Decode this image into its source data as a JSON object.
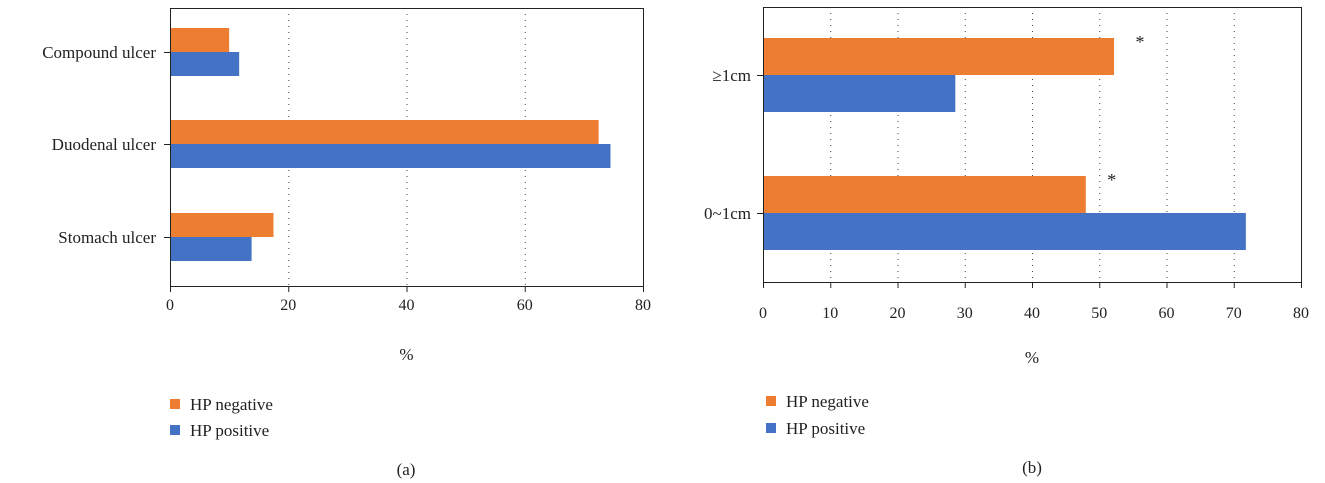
{
  "chart_data": [
    {
      "id": "a",
      "type": "bar",
      "orientation": "horizontal",
      "panel_label": "(a)",
      "categories": [
        "Stomach ulcer",
        "Duodenal ulcer",
        "Compound ulcer"
      ],
      "series": [
        {
          "name": "HP negative",
          "color": "#ED7D31",
          "values": [
            17.5,
            72.5,
            10
          ]
        },
        {
          "name": "HP positive",
          "color": "#4472C4",
          "values": [
            13.8,
            74.5,
            11.7
          ]
        }
      ],
      "xlabel": "%",
      "xlim": [
        0,
        80
      ],
      "xticks": [
        0,
        20,
        40,
        60,
        80
      ],
      "grid": "vertical dotted",
      "legend": "bottom",
      "annotations": []
    },
    {
      "id": "b",
      "type": "bar",
      "orientation": "horizontal",
      "panel_label": "(b)",
      "categories": [
        "0~1cm",
        "≥1cm"
      ],
      "series": [
        {
          "name": "HP negative",
          "color": "#ED7D31",
          "values": [
            48,
            52.2
          ]
        },
        {
          "name": "HP positive",
          "color": "#4472C4",
          "values": [
            71.8,
            28.6
          ]
        }
      ],
      "xlabel": "%",
      "xlim": [
        0,
        80
      ],
      "xticks": [
        0,
        10,
        20,
        30,
        40,
        50,
        60,
        70,
        80
      ],
      "grid": "vertical dotted",
      "legend": "bottom",
      "annotations": [
        {
          "category": "≥1cm",
          "text": "*"
        },
        {
          "category": "0~1cm",
          "text": "*"
        }
      ]
    }
  ]
}
